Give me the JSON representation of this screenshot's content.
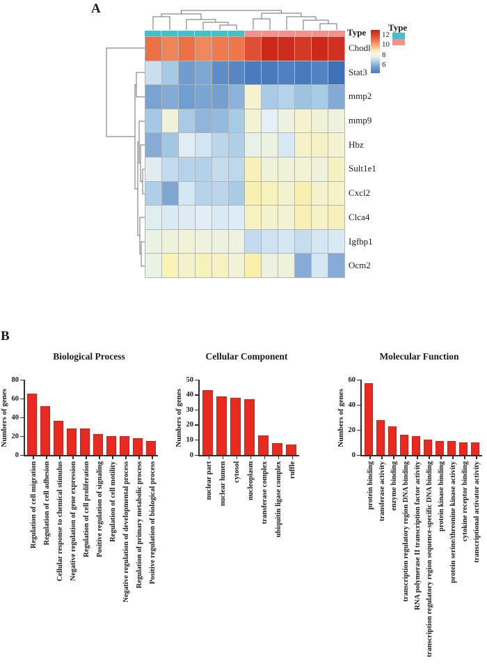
{
  "panel_a_label": "A",
  "panel_b_label": "B",
  "chart_data": [
    {
      "type": "heatmap",
      "rows": [
        "Chodl",
        "Stat3",
        "mmp2",
        "mmp9",
        "Hbz",
        "Sult1e1",
        "Cxcl2",
        "Clca4",
        "Igfbp1",
        "Ocm2"
      ],
      "n_cols": 12,
      "column_annotation": {
        "label": "Type",
        "legend_title": "Type",
        "groups": [
          {
            "color": "#44c0c7",
            "count": 6
          },
          {
            "color": "#f4908e",
            "count": 6
          }
        ]
      },
      "colorbar": {
        "tick_labels": [
          "12",
          "10",
          "8",
          "6"
        ],
        "gradient_stops": [
          "#c02418 0%",
          "#d63d27 10%",
          "#ee7446 24%",
          "#fbeabc 48%",
          "#fdf7dc 55%",
          "#dcebf4 64%",
          "#aecfe7 73%",
          "#6f9cce 86%",
          "#4a79bc 100%"
        ]
      },
      "cell_colors": [
        [
          "#ed6f45",
          "#f0845a",
          "#ed6f45",
          "#f0875d",
          "#f0794e",
          "#ef764b",
          "#de4f33",
          "#cb2a1b",
          "#cd2d1e",
          "#d23a26",
          "#cb2a1b",
          "#cf3122"
        ],
        [
          "#c9dff0",
          "#a6cae5",
          "#6d9cce",
          "#7ea6d3",
          "#5e8cc6",
          "#5886c3",
          "#4c7bbc",
          "#4a79bc",
          "#5080bf",
          "#4a79bc",
          "#5282c0",
          "#4170b7"
        ],
        [
          "#7aa3d1",
          "#83abd6",
          "#6f9ed0",
          "#7aa5d3",
          "#74a0d0",
          "#8cb2d9",
          "#f4f2d0",
          "#a9cce6",
          "#b4d2e9",
          "#9dc2e0",
          "#a9cce6",
          "#84a9d4"
        ],
        [
          "#a5c8e4",
          "#eff2d8",
          "#a8cae5",
          "#8fb5db",
          "#94bade",
          "#a8cbe5",
          "#f2f3d4",
          "#e4f0f6",
          "#ebf2e0",
          "#f5f2cd",
          "#f0f2d8",
          "#eef2dc"
        ],
        [
          "#86acd6",
          "#a3c6e3",
          "#e1edf6",
          "#d3e5f2",
          "#b9d6eb",
          "#aecfe7",
          "#e7f1e6",
          "#ebf2e0",
          "#d6e8f3",
          "#f5f1c8",
          "#f6f1c4",
          "#f3f2d2"
        ],
        [
          "#dfecf2",
          "#c2dbee",
          "#b5d3ea",
          "#b3d1e9",
          "#c4dcee",
          "#bdd8ec",
          "#f7f0b8",
          "#eff2da",
          "#f0f2d8",
          "#f2f2d4",
          "#eef2dc",
          "#f6f1c0"
        ],
        [
          "#aecfe7",
          "#7ea6d3",
          "#d5e7f3",
          "#b5d3ea",
          "#b9d6eb",
          "#a9cce6",
          "#f8f0b0",
          "#f7f1bc",
          "#f3f2d0",
          "#f8f0b0",
          "#f4f2cc",
          "#f5f2c8"
        ],
        [
          "#dfeef0",
          "#d9eaf3",
          "#dcebf4",
          "#e2eef6",
          "#d9eaf5",
          "#ddecf6",
          "#f6f1c0",
          "#f4f2cc",
          "#f2f2d4",
          "#f8f0b4",
          "#f5f2c8",
          "#f7f0ba"
        ],
        [
          "#eaf2e2",
          "#eef2dc",
          "#f2f2d6",
          "#eef2de",
          "#edf2df",
          "#ecf2e0",
          "#c2dbee",
          "#cfe2f1",
          "#d5e7f3",
          "#c6ddef",
          "#d5e7f3",
          "#d9eaf5"
        ],
        [
          "#eaf2e2",
          "#f8f2b4",
          "#f4f2cc",
          "#f7f1bc",
          "#f7f1c0",
          "#f2f2d4",
          "#f9f0ac",
          "#eaf1de",
          "#eef2da",
          "#85abd6",
          "#d5e7f3",
          "#85abd6"
        ]
      ]
    },
    {
      "type": "bar",
      "title": "Biological Process",
      "ylabel": "Numbers of genes",
      "ylim": [
        0,
        80
      ],
      "yticks": [
        0,
        20,
        40,
        60,
        80
      ],
      "categories": [
        "Regulation of cell migration",
        "Regulation of cell adhesion",
        "Cellular response to chemical stimulus",
        "Negative regulation of gene expression",
        "Regulation of cell proliferation",
        "Positive regulation of signaling",
        "Regulation of cell motility",
        "Negative regulation of developmental process",
        "Regulation of primary metabolic process",
        "Positive regulation of biological process"
      ],
      "values": [
        65,
        52,
        36,
        28,
        28,
        22,
        20,
        20,
        18,
        15
      ],
      "bar_color": "#e92a21"
    },
    {
      "type": "bar",
      "title": "Cellular Component",
      "ylabel": "Numbers of genes",
      "ylim": [
        0,
        50
      ],
      "yticks": [
        0,
        10,
        20,
        30,
        40,
        50
      ],
      "categories": [
        "nuclear part",
        "nuclear lumen",
        "cytosol",
        "nucleoplasm",
        "transferase complex",
        "ubiquitin ligase complex",
        "ruffle"
      ],
      "values": [
        43,
        39,
        38,
        37,
        13,
        8,
        7
      ],
      "bar_color": "#e92a21"
    },
    {
      "type": "bar",
      "title": "Molecular Function",
      "ylabel": "Numbers of genes",
      "ylim": [
        0,
        60
      ],
      "yticks": [
        0,
        20,
        40,
        60
      ],
      "categories": [
        "protein binding",
        "transferase activity",
        "enzyme binding",
        "transcription regulatory region DNA binding",
        "RNA polymerase II transcription factor activity",
        "transcription regulatory region sequence-specific DNA binding",
        "protein kinase binding",
        "protein serine/threonine kinase activity",
        "cytokine receptor binding",
        "transcriptional activator activity"
      ],
      "values": [
        57,
        28,
        23,
        16,
        15,
        12,
        11,
        11,
        10,
        10
      ],
      "bar_color": "#e92a21"
    }
  ]
}
